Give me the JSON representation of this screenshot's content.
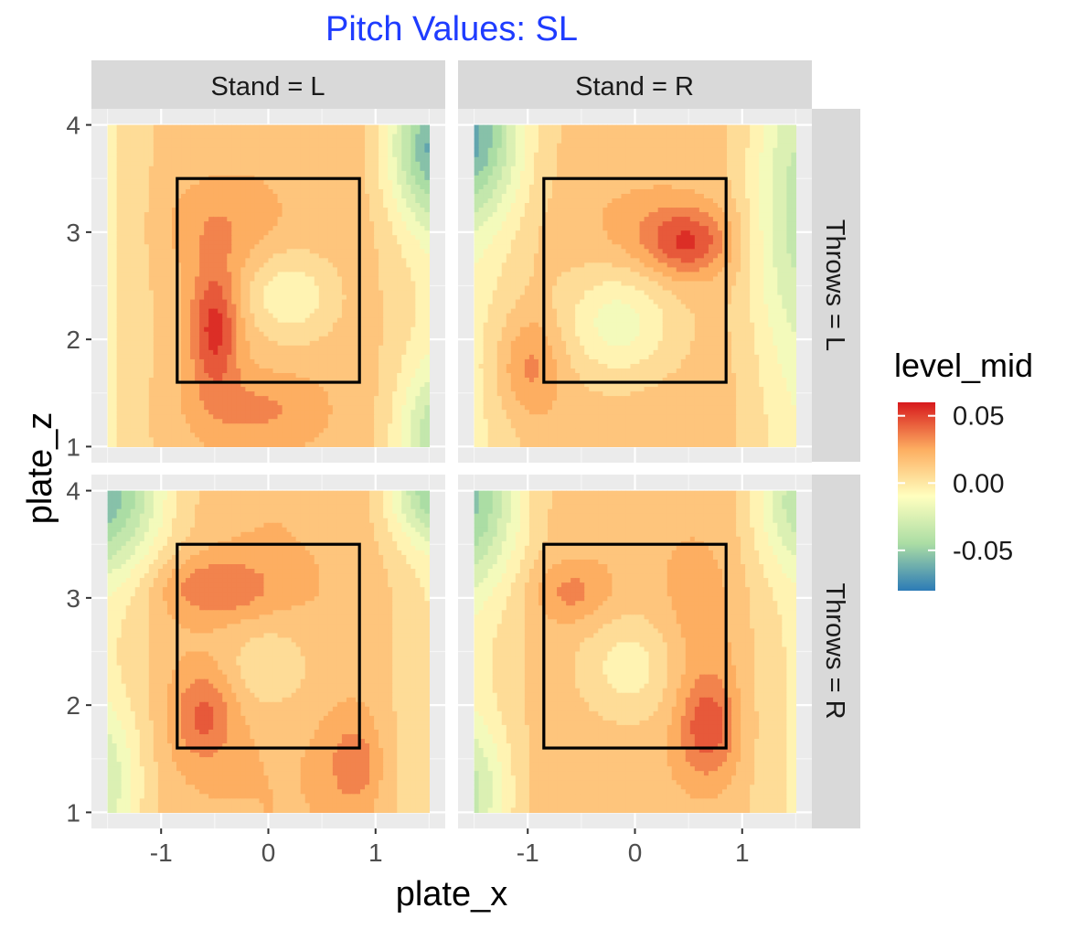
{
  "chart_data": {
    "type": "heatmap",
    "title": "Pitch Values: SL",
    "xlabel": "plate_x",
    "ylabel": "plate_z",
    "xlim": [
      -1.5,
      1.5
    ],
    "ylim": [
      1,
      4
    ],
    "x_ticks": [
      -1,
      0,
      1
    ],
    "y_ticks": [
      1,
      2,
      3,
      4
    ],
    "strike_zone": {
      "x": [
        -0.85,
        0.85
      ],
      "z": [
        1.6,
        3.5
      ]
    },
    "facet_cols": [
      "Stand = L",
      "Stand = R"
    ],
    "facet_rows": [
      "Throws = L",
      "Throws = R"
    ],
    "legend": {
      "title": "level_mid",
      "position": "right",
      "labels": [
        "0.05",
        "0.00",
        "-0.05"
      ],
      "values": [
        0.05,
        0.0,
        -0.05
      ],
      "range": [
        -0.08,
        0.06
      ],
      "colors": [
        "#2c7bb6",
        "#abdda4",
        "#ffffbf",
        "#fdae61",
        "#d7191c"
      ]
    },
    "panels": [
      {
        "stand": "L",
        "throws": "L",
        "row": 0,
        "col": 0,
        "base": 0.018,
        "rx": 0.42,
        "blobs": [
          {
            "x": -0.5,
            "z": 2.1,
            "sx": 0.16,
            "sz": 0.42,
            "a": 0.038
          },
          {
            "x": -0.45,
            "z": 3.05,
            "sx": 0.35,
            "sz": 0.28,
            "a": 0.012
          },
          {
            "x": -0.1,
            "z": 1.35,
            "sx": 0.4,
            "sz": 0.22,
            "a": 0.014
          },
          {
            "x": 0.2,
            "z": 2.4,
            "sx": 0.3,
            "sz": 0.3,
            "a": -0.026
          },
          {
            "x": 1.55,
            "z": 3.8,
            "sx": 0.3,
            "sz": 0.5,
            "a": -0.06
          },
          {
            "x": 1.55,
            "z": 1.1,
            "sx": 0.25,
            "sz": 0.45,
            "a": -0.035
          }
        ]
      },
      {
        "stand": "R",
        "throws": "L",
        "row": 0,
        "col": 1,
        "base": 0.015,
        "rx": 0.4,
        "blobs": [
          {
            "x": 0.5,
            "z": 2.9,
            "sx": 0.28,
            "sz": 0.22,
            "a": 0.032
          },
          {
            "x": 0.15,
            "z": 3.05,
            "sx": 0.45,
            "sz": 0.28,
            "a": 0.01
          },
          {
            "x": -1.0,
            "z": 1.75,
            "sx": 0.22,
            "sz": 0.35,
            "a": 0.022
          },
          {
            "x": -0.15,
            "z": 2.15,
            "sx": 0.35,
            "sz": 0.35,
            "a": -0.03
          },
          {
            "x": -1.55,
            "z": 3.9,
            "sx": 0.35,
            "sz": 0.55,
            "a": -0.06
          },
          {
            "x": 1.5,
            "z": 3.2,
            "sx": 0.3,
            "sz": 1.0,
            "a": -0.03
          }
        ]
      },
      {
        "stand": "L",
        "throws": "R",
        "row": 1,
        "col": 0,
        "base": 0.02,
        "rx": 0.4,
        "blobs": [
          {
            "x": -0.5,
            "z": 3.1,
            "sx": 0.4,
            "sz": 0.2,
            "a": 0.022
          },
          {
            "x": -0.6,
            "z": 1.9,
            "sx": 0.2,
            "sz": 0.3,
            "a": 0.025
          },
          {
            "x": 0.8,
            "z": 1.45,
            "sx": 0.18,
            "sz": 0.3,
            "a": 0.02
          },
          {
            "x": 0.0,
            "z": 2.35,
            "sx": 0.3,
            "sz": 0.3,
            "a": -0.018
          },
          {
            "x": -1.55,
            "z": 4.0,
            "sx": 0.45,
            "sz": 0.55,
            "a": -0.06
          },
          {
            "x": 1.55,
            "z": 4.0,
            "sx": 0.3,
            "sz": 0.35,
            "a": -0.05
          },
          {
            "x": -1.55,
            "z": 1.3,
            "sx": 0.25,
            "sz": 0.5,
            "a": -0.03
          }
        ]
      },
      {
        "stand": "R",
        "throws": "R",
        "row": 1,
        "col": 1,
        "base": 0.017,
        "rx": 0.4,
        "blobs": [
          {
            "x": 0.68,
            "z": 1.8,
            "sx": 0.2,
            "sz": 0.35,
            "a": 0.032
          },
          {
            "x": -0.6,
            "z": 3.05,
            "sx": 0.25,
            "sz": 0.2,
            "a": 0.018
          },
          {
            "x": 0.6,
            "z": 2.9,
            "sx": 0.25,
            "sz": 0.5,
            "a": 0.01
          },
          {
            "x": -0.05,
            "z": 2.35,
            "sx": 0.32,
            "sz": 0.35,
            "a": -0.022
          },
          {
            "x": -1.55,
            "z": 3.9,
            "sx": 0.35,
            "sz": 0.55,
            "a": -0.05
          },
          {
            "x": -1.55,
            "z": 1.2,
            "sx": 0.25,
            "sz": 0.45,
            "a": -0.032
          },
          {
            "x": 1.55,
            "z": 3.9,
            "sx": 0.3,
            "sz": 0.45,
            "a": -0.035
          }
        ]
      }
    ]
  }
}
